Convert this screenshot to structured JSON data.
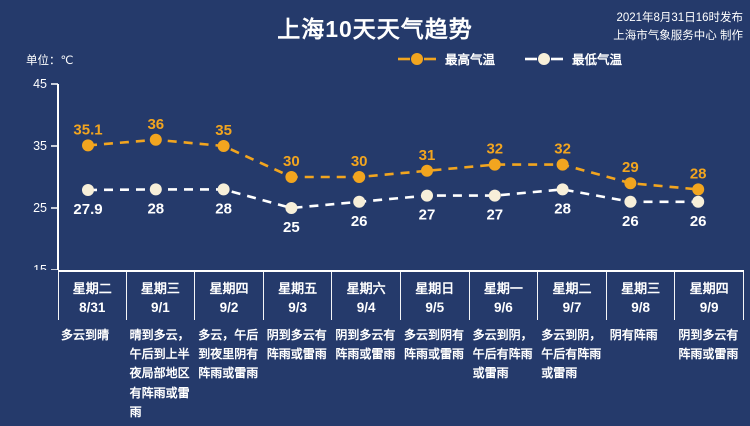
{
  "title": "上海10天天气趋势",
  "publish": {
    "line1": "2021年8月31日16时发布",
    "line2": "上海市气象服务中心 制作"
  },
  "unit_label": "单位：℃",
  "legend": {
    "high_label": "最高气温",
    "low_label": "最低气温"
  },
  "colors": {
    "background": "#253A6B",
    "high_series": "#F2A51F",
    "low_marker": "#F7EFD9",
    "low_line": "#FFFFFF",
    "text": "#FFFFFF"
  },
  "chart_data": {
    "type": "line",
    "title": "上海10天天气趋势",
    "ylabel": "℃",
    "ylim": [
      15,
      45
    ],
    "yticks": [
      45,
      35,
      25,
      15
    ],
    "grid": false,
    "legend_position": "top",
    "categories": [
      {
        "weekday": "星期二",
        "date": "8/31"
      },
      {
        "weekday": "星期三",
        "date": "9/1"
      },
      {
        "weekday": "星期四",
        "date": "9/2"
      },
      {
        "weekday": "星期五",
        "date": "9/3"
      },
      {
        "weekday": "星期六",
        "date": "9/4"
      },
      {
        "weekday": "星期日",
        "date": "9/5"
      },
      {
        "weekday": "星期一",
        "date": "9/6"
      },
      {
        "weekday": "星期二",
        "date": "9/7"
      },
      {
        "weekday": "星期三",
        "date": "9/8"
      },
      {
        "weekday": "星期四",
        "date": "9/9"
      }
    ],
    "series": [
      {
        "name": "最高气温",
        "values": [
          35.1,
          36,
          35,
          30,
          30,
          31,
          32,
          32,
          29,
          28
        ]
      },
      {
        "name": "最低气温",
        "values": [
          27.9,
          28,
          28,
          25,
          26,
          27,
          27,
          28,
          26,
          26
        ]
      }
    ],
    "descriptions": [
      "多云到晴",
      "晴到多云，午后到上半夜局部地区有阵雨或雷雨",
      "多云，午后到夜里阴有阵雨或雷雨",
      "阴到多云有阵雨或雷雨",
      "阴到多云有阵雨或雷雨",
      "多云到阴有阵雨或雷雨",
      "多云到阴，午后有阵雨或雷雨",
      "多云到阴，午后有阵雨或雷雨",
      "阴有阵雨",
      "阴到多云有阵雨或雷雨"
    ]
  }
}
